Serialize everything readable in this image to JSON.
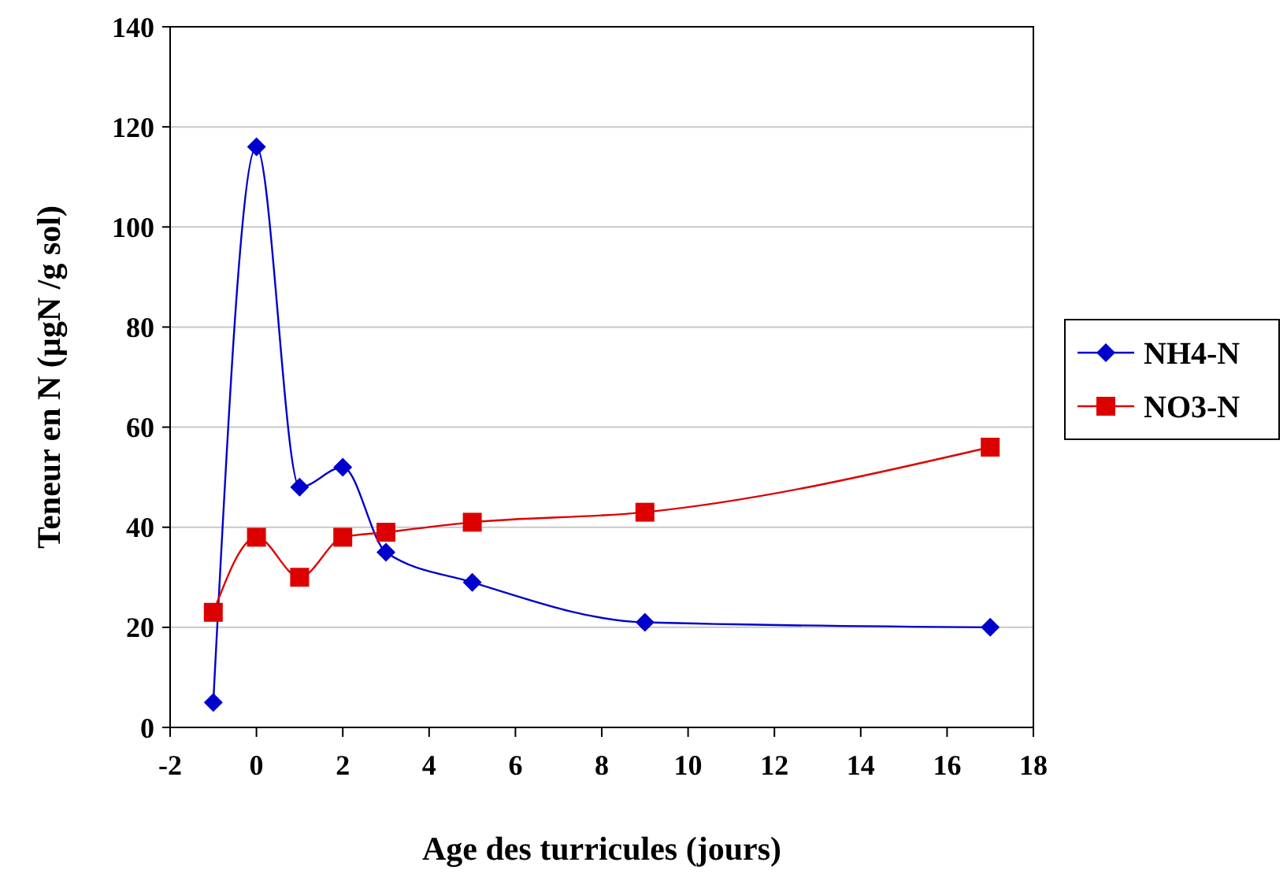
{
  "chart_data": {
    "type": "line",
    "xlabel": "Age des turricules (jours)",
    "ylabel": "Teneur en N (µgN /g sol)",
    "xlim": [
      -2,
      18
    ],
    "xticks": [
      -2,
      0,
      2,
      4,
      6,
      8,
      10,
      12,
      14,
      16,
      18
    ],
    "ylim": [
      0,
      140
    ],
    "yticks": [
      0,
      20,
      40,
      60,
      80,
      100,
      120,
      140
    ],
    "grid": "y",
    "legend": "right",
    "series": [
      {
        "name": "NH4-N",
        "color": "#0000cc",
        "marker": "diamond",
        "x": [
          -1,
          0,
          1,
          2,
          3,
          5,
          9,
          17
        ],
        "values": [
          5,
          116,
          48,
          52,
          35,
          29,
          21,
          20
        ]
      },
      {
        "name": "NO3-N",
        "color": "#dd0000",
        "marker": "square",
        "x": [
          -1,
          0,
          1,
          2,
          3,
          5,
          9,
          17
        ],
        "values": [
          23,
          38,
          30,
          38,
          39,
          41,
          43,
          56
        ]
      }
    ]
  }
}
